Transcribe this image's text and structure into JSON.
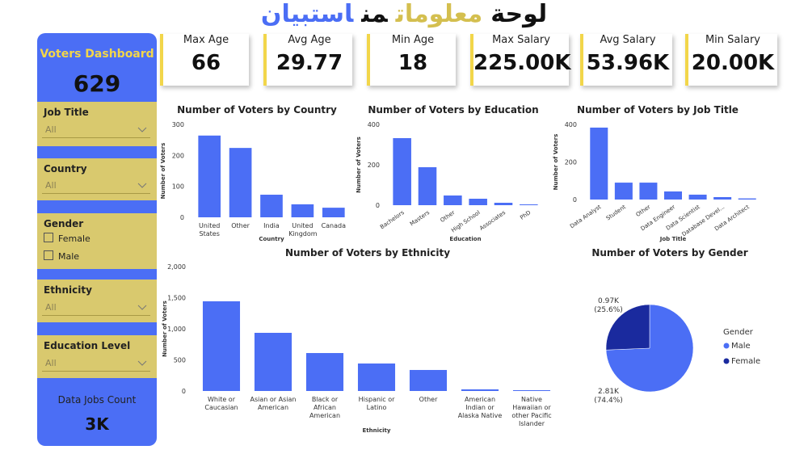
{
  "title": [
    "لوحة",
    "معلومات",
    "من",
    "استبيان"
  ],
  "title_colors": [
    "#111111",
    "#d4bf4f",
    "#111111",
    "#4b6ef5"
  ],
  "sidebar": {
    "heading": "Voters Dashboard",
    "count": "629",
    "slicers": [
      {
        "label": "Job Title",
        "value": "All"
      },
      {
        "label": "Country",
        "value": "All"
      },
      {
        "label": "Gender",
        "options": [
          "Female",
          "Male"
        ]
      },
      {
        "label": "Ethnicity",
        "value": "All"
      },
      {
        "label": "Education Level",
        "value": "All"
      }
    ],
    "footer_label": "Data Jobs Count",
    "footer_value": "3K"
  },
  "kpis": [
    {
      "label": "Max Age",
      "value": "66"
    },
    {
      "label": "Avg Age",
      "value": "29.77"
    },
    {
      "label": "Min Age",
      "value": "18"
    },
    {
      "label": "Max Salary",
      "value": "225.00K"
    },
    {
      "label": "Avg Salary",
      "value": "53.96K"
    },
    {
      "label": "Min Salary",
      "value": "20.00K"
    }
  ],
  "chart_data": [
    {
      "type": "bar",
      "title": "Number of Voters by Country",
      "x_label": "Country",
      "y_label": "Number of Voters",
      "categories": [
        "United States",
        "Other",
        "India",
        "United Kingdom",
        "Canada"
      ],
      "values": [
        264,
        224,
        73,
        42,
        31
      ],
      "color": "#4b6ef5",
      "ylim": [
        0,
        300
      ],
      "yticks": [
        0,
        100,
        200,
        300
      ]
    },
    {
      "type": "bar",
      "title": "Number of Voters by Education",
      "x_label": "Education",
      "y_label": "Number of Voters",
      "categories": [
        "Bachelors",
        "Masters",
        "Other",
        "High School",
        "Associates",
        "PhD"
      ],
      "values": [
        332,
        188,
        48,
        32,
        12,
        4
      ],
      "color": "#4b6ef5",
      "ylim": [
        0,
        400
      ],
      "yticks": [
        0,
        200,
        400
      ]
    },
    {
      "type": "bar",
      "title": "Number of Voters by Job Title",
      "x_label": "Job Title",
      "y_label": "Number of Voters",
      "categories": [
        "Data Analyst",
        "Student",
        "Other",
        "Data Engineer",
        "Data Scientist",
        "Database Devel...",
        "Data Architect"
      ],
      "values": [
        383,
        90,
        90,
        43,
        26,
        13,
        6
      ],
      "color": "#4b6ef5",
      "ylim": [
        0,
        400
      ],
      "yticks": [
        0,
        200,
        400
      ]
    },
    {
      "type": "bar",
      "title": "Number of Voters by Ethnicity",
      "x_label": "Ethnicity",
      "y_label": "Number of Voters",
      "categories": [
        "White or Caucasian",
        "Asian or Asian American",
        "Black or African American",
        "Hispanic or Latino",
        "Other",
        "American Indian or Alaska Native",
        "Native Hawaiian or other Pacific Islander"
      ],
      "values": [
        1442,
        935,
        610,
        442,
        338,
        26,
        13
      ],
      "color": "#4b6ef5",
      "ylim": [
        0,
        2000
      ],
      "yticks": [
        0,
        500,
        {
          "value": 1000,
          "label": "1,000"
        },
        {
          "value": 1500,
          "label": "1,500"
        },
        {
          "value": 2000,
          "label": "2,000"
        }
      ]
    },
    {
      "type": "pie",
      "title": "Number of Voters by Gender",
      "legend_title": "Gender",
      "categories": [
        "Male",
        "Female"
      ],
      "values": [
        2810,
        970
      ],
      "value_labels": [
        "2.81K",
        "0.97K"
      ],
      "percent_labels": [
        "(74.4%)",
        "(25.6%)"
      ],
      "colors": [
        "#4b6ef5",
        "#1a2a9e"
      ]
    }
  ]
}
